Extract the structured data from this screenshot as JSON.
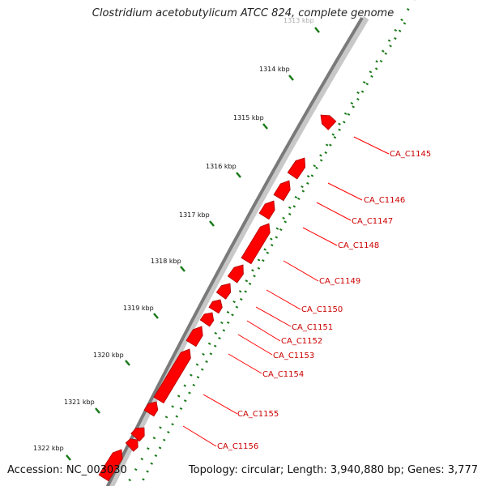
{
  "title": "Clostridium acetobutylicum ATCC 824, complete genome",
  "accession": "Accession: NC_003030",
  "topology": "Topology: circular; Length: 3,940,880 bp; Genes: 3,777",
  "colors": {
    "gene": "#ff0000",
    "gene_shade": "#b00000",
    "label": "#cc0000",
    "tick": "#1a7a1a",
    "backbone": "#808080"
  },
  "scale_labels": [
    "1313 kbp",
    "1314 kbp",
    "1315 kbp",
    "1316 kbp",
    "1317 kbp",
    "1318 kbp",
    "1319 kbp",
    "1320 kbp",
    "1321 kbp",
    "1322 kbp"
  ],
  "genes": [
    {
      "label": "CA_C1145"
    },
    {
      "label": "CA_C1146"
    },
    {
      "label": "CA_C1147"
    },
    {
      "label": "CA_C1148"
    },
    {
      "label": "CA_C1149"
    },
    {
      "label": "CA_C1150"
    },
    {
      "label": "CA_C1151"
    },
    {
      "label": "CA_C1152"
    },
    {
      "label": "CA_C1153"
    },
    {
      "label": "CA_C1154"
    },
    {
      "label": "CA_C1155"
    },
    {
      "label": "CA_C1156"
    }
  ]
}
